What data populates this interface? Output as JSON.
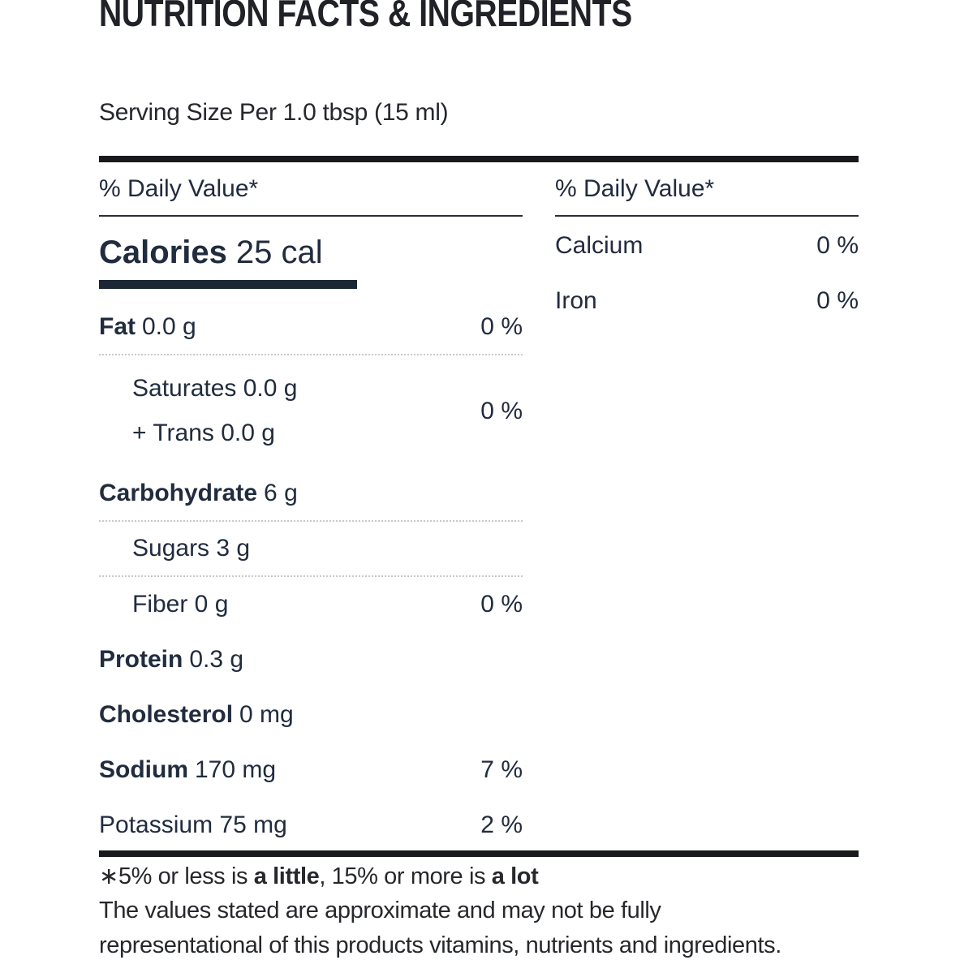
{
  "title": "NUTRITION FACTS & INGREDIENTS",
  "serving": "Serving Size Per 1.0 tbsp (15 ml)",
  "daily_value_header": "% Daily Value*",
  "calories": {
    "label": "Calories",
    "value": "25 cal"
  },
  "left": {
    "fat": {
      "bold": "Fat",
      "rest": "0.0 g",
      "percent": "0 %"
    },
    "saturates": {
      "text": "Saturates 0.0 g"
    },
    "trans": {
      "text": "+ Trans 0.0 g"
    },
    "sat_trans_percent": "0 %",
    "carbohydrate": {
      "bold": "Carbohydrate",
      "rest": "6 g"
    },
    "sugars": {
      "text": "Sugars 3 g"
    },
    "fiber": {
      "text": "Fiber 0 g",
      "percent": "0 %"
    },
    "protein": {
      "bold": "Protein",
      "rest": "0.3 g"
    },
    "cholesterol": {
      "bold": "Cholesterol",
      "rest": "0 mg"
    },
    "sodium": {
      "bold": "Sodium",
      "rest": "170 mg",
      "percent": "7 %"
    },
    "potassium": {
      "text": "Potassium 75 mg",
      "percent": "2 %"
    }
  },
  "right": {
    "calcium": {
      "name": "Calcium",
      "percent": "0 %"
    },
    "iron": {
      "name": "Iron",
      "percent": "0 %"
    }
  },
  "footnote": {
    "line1_parts": [
      "∗5% or less is ",
      "a little",
      ", 15% or more is ",
      "a lot"
    ],
    "line2": "The values stated are approximate and may not be fully",
    "line3": "representational of this products vitamins, nutrients and ingredients."
  },
  "colors": {
    "body_text": "#212c3e",
    "heading_text": "#202227",
    "thick_rule": "#17191d",
    "calories_rule": "#1c2736",
    "dotted_divider": "#c9c9c9"
  }
}
